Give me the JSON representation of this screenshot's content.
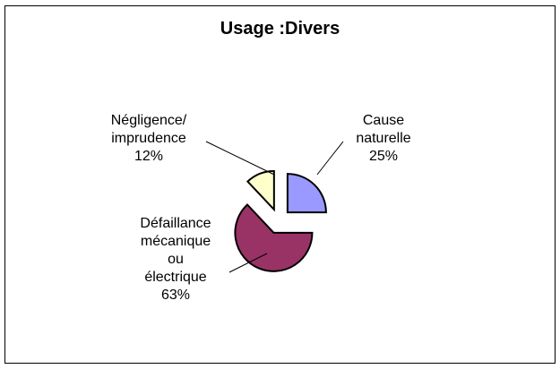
{
  "chart_data": {
    "type": "pie",
    "title": "Usage :Divers",
    "slices": [
      {
        "label": "Cause naturelle",
        "label_lines": [
          "Cause",
          "naturelle"
        ],
        "value": 25,
        "value_label": "25%",
        "color": "#9999ff"
      },
      {
        "label": "Défaillance mécanique ou électrique",
        "label_lines": [
          "Défaillance",
          "mécanique",
          "ou",
          "électrique"
        ],
        "value": 63,
        "value_label": "63%",
        "color": "#993366"
      },
      {
        "label": "Négligence/ imprudence",
        "label_lines": [
          "Négligence/",
          "imprudence"
        ],
        "value": 12,
        "value_label": "12%",
        "color": "#ffffcc"
      }
    ],
    "exploded": true,
    "legend": "none"
  }
}
